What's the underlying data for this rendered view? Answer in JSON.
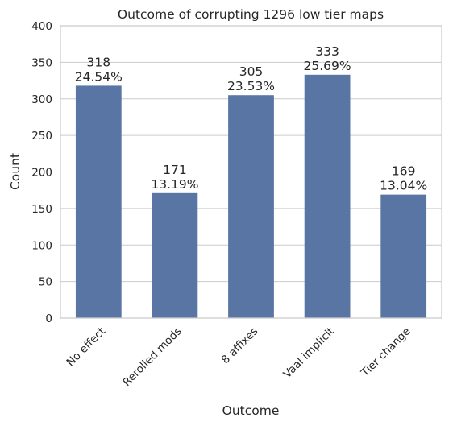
{
  "chart_data": {
    "type": "bar",
    "title": "Outcome of corrupting 1296 low tier maps",
    "xlabel": "Outcome",
    "ylabel": "Count",
    "ylim": [
      0,
      400
    ],
    "yticks": [
      0,
      50,
      100,
      150,
      200,
      250,
      300,
      350,
      400
    ],
    "grid": "horizontal",
    "categories": [
      "No effect",
      "Rerolled mods",
      "8 affixes",
      "Vaal implicit",
      "Tier change"
    ],
    "values": [
      318,
      171,
      305,
      333,
      169
    ],
    "percent_labels": [
      "24.54%",
      "13.19%",
      "23.53%",
      "25.69%",
      "13.04%"
    ],
    "bar_color": "#5975a4"
  }
}
